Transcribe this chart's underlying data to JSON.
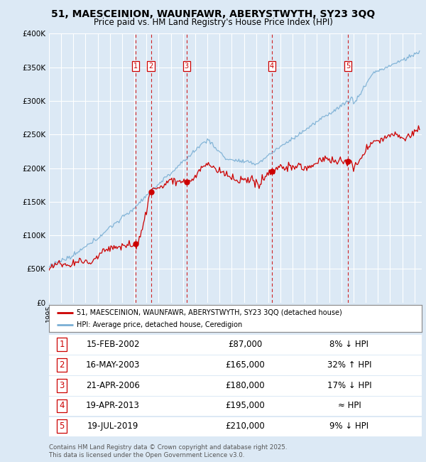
{
  "title": "51, MAESCEINION, WAUNFAWR, ABERYSTWYTH, SY23 3QQ",
  "subtitle": "Price paid vs. HM Land Registry's House Price Index (HPI)",
  "bg_color": "#dce9f5",
  "y_ticks": [
    0,
    50000,
    100000,
    150000,
    200000,
    250000,
    300000,
    350000,
    400000
  ],
  "y_tick_labels": [
    "£0",
    "£50K",
    "£100K",
    "£150K",
    "£200K",
    "£250K",
    "£300K",
    "£350K",
    "£400K"
  ],
  "x_start_year": 1995,
  "x_end_year": 2025,
  "sale_dates_num": [
    2002.12,
    2003.37,
    2006.3,
    2013.3,
    2019.55
  ],
  "sale_prices": [
    87000,
    165000,
    180000,
    195000,
    210000
  ],
  "sale_labels": [
    "1",
    "2",
    "3",
    "4",
    "5"
  ],
  "table_rows": [
    [
      "1",
      "15-FEB-2002",
      "£87,000",
      "8% ↓ HPI"
    ],
    [
      "2",
      "16-MAY-2003",
      "£165,000",
      "32% ↑ HPI"
    ],
    [
      "3",
      "21-APR-2006",
      "£180,000",
      "17% ↓ HPI"
    ],
    [
      "4",
      "19-APR-2013",
      "£195,000",
      "≈ HPI"
    ],
    [
      "5",
      "19-JUL-2019",
      "£210,000",
      "9% ↓ HPI"
    ]
  ],
  "legend_line1": "51, MAESCEINION, WAUNFAWR, ABERYSTWYTH, SY23 3QQ (detached house)",
  "legend_line2": "HPI: Average price, detached house, Ceredigion",
  "footer": "Contains HM Land Registry data © Crown copyright and database right 2025.\nThis data is licensed under the Open Government Licence v3.0.",
  "red_color": "#cc0000",
  "blue_color": "#7aafd4",
  "dashed_color": "#cc0000",
  "marker_color": "#cc0000"
}
